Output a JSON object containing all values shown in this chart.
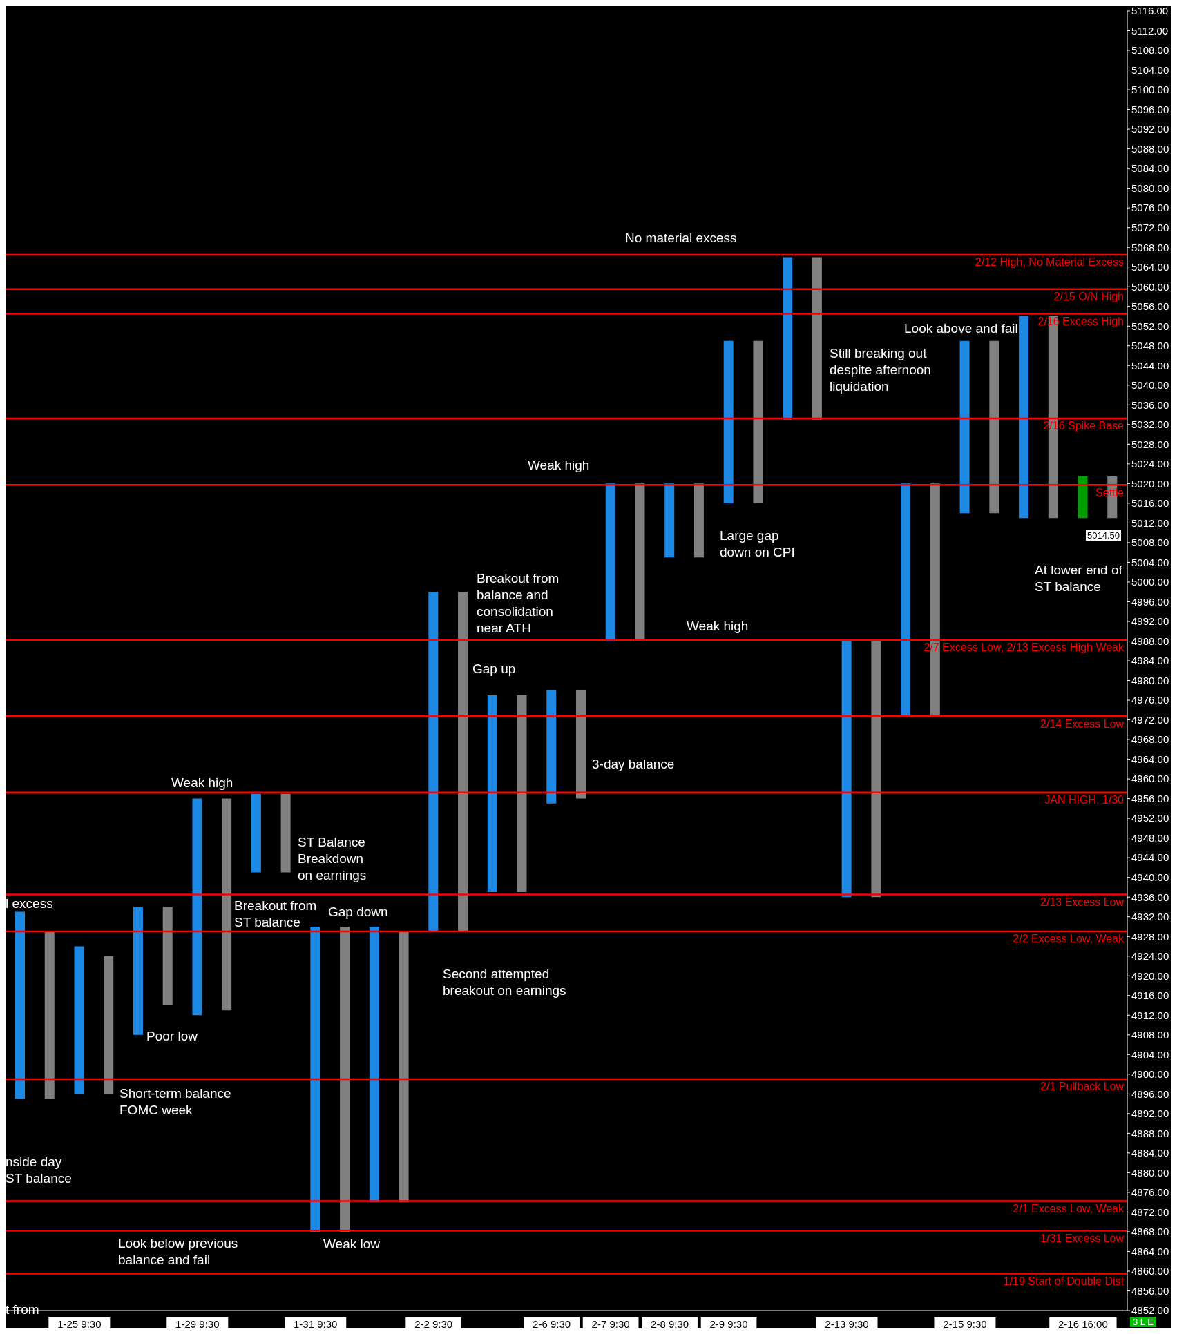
{
  "chart_data": {
    "type": "bar",
    "categories": [
      null,
      null,
      "1-25  9:30",
      null,
      null,
      null,
      "1-29  9:30",
      null,
      null,
      null,
      "1-31  9:30",
      null,
      null,
      null,
      "2-2  9:30",
      null,
      null,
      null,
      "2-6  9:30",
      null,
      "2-7  9:30",
      null,
      "2-8  9:30",
      null,
      "2-9  9:30",
      null,
      null,
      null,
      "2-13  9:30",
      null,
      null,
      null,
      "2-15  9:30",
      null,
      null,
      null,
      "2-16  16:00",
      null
    ],
    "base": [
      4895,
      4895,
      4896,
      4896,
      4908,
      4914,
      4912,
      4913,
      4941,
      4941,
      4868,
      4868,
      4874,
      4874,
      4929,
      4929,
      4937,
      4937,
      4955,
      4956,
      4988,
      4988,
      5005,
      5005,
      5016,
      5016,
      5033,
      5033,
      4936,
      4936,
      4973,
      4973,
      5014,
      5014,
      5013,
      5013,
      5013,
      5013
    ],
    "values": [
      38,
      34,
      30,
      28,
      26,
      20,
      44,
      43,
      16,
      16,
      62,
      62,
      56,
      55,
      69,
      69,
      40,
      40,
      23,
      22,
      32,
      32,
      15,
      15,
      33,
      33,
      33,
      33,
      52,
      52,
      47,
      47,
      35,
      35,
      41,
      41,
      8.5,
      8.5
    ],
    "colors": [
      "#1e88e5",
      "#808080",
      "#1e88e5",
      "#808080",
      "#1e88e5",
      "#808080",
      "#1e88e5",
      "#808080",
      "#1e88e5",
      "#808080",
      "#1e88e5",
      "#808080",
      "#1e88e5",
      "#808080",
      "#1e88e5",
      "#808080",
      "#1e88e5",
      "#808080",
      "#1e88e5",
      "#808080",
      "#1e88e5",
      "#808080",
      "#1e88e5",
      "#808080",
      "#1e88e5",
      "#808080",
      "#1e88e5",
      "#808080",
      "#1e88e5",
      "#808080",
      "#1e88e5",
      "#808080",
      "#1e88e5",
      "#808080",
      "#1e88e5",
      "#808080",
      "#00a000",
      "#808080"
    ],
    "ylim": [
      4852,
      5116
    ],
    "yticks": [
      {
        "value": 4852,
        "label": "4852.00"
      },
      {
        "value": 4856,
        "label": "4856.00"
      },
      {
        "value": 4860,
        "label": "4860.00"
      },
      {
        "value": 4864,
        "label": "4864.00"
      },
      {
        "value": 4868,
        "label": "4868.00"
      },
      {
        "value": 4872,
        "label": "4872.00"
      },
      {
        "value": 4876,
        "label": "4876.00"
      },
      {
        "value": 4880,
        "label": "4880.00"
      },
      {
        "value": 4884,
        "label": "4884.00"
      },
      {
        "value": 4888,
        "label": "4888.00"
      },
      {
        "value": 4892,
        "label": "4892.00"
      },
      {
        "value": 4896,
        "label": "4896.00"
      },
      {
        "value": 4900,
        "label": "4900.00"
      },
      {
        "value": 4904,
        "label": "4904.00"
      },
      {
        "value": 4908,
        "label": "4908.00"
      },
      {
        "value": 4912,
        "label": "4912.00"
      },
      {
        "value": 4916,
        "label": "4916.00"
      },
      {
        "value": 4920,
        "label": "4920.00"
      },
      {
        "value": 4924,
        "label": "4924.00"
      },
      {
        "value": 4928,
        "label": "4928.00"
      },
      {
        "value": 4932,
        "label": "4932.00"
      },
      {
        "value": 4936,
        "label": "4936.00"
      },
      {
        "value": 4940,
        "label": "4940.00"
      },
      {
        "value": 4944,
        "label": "4944.00"
      },
      {
        "value": 4948,
        "label": "4948.00"
      },
      {
        "value": 4952,
        "label": "4952.00"
      },
      {
        "value": 4956,
        "label": "4956.00"
      },
      {
        "value": 4960,
        "label": "4960.00"
      },
      {
        "value": 4964,
        "label": "4964.00"
      },
      {
        "value": 4968,
        "label": "4968.00"
      },
      {
        "value": 4972,
        "label": "4972.00"
      },
      {
        "value": 4976,
        "label": "4976.00"
      },
      {
        "value": 4980,
        "label": "4980.00"
      },
      {
        "value": 4984,
        "label": "4984.00"
      },
      {
        "value": 4988,
        "label": "4988.00"
      },
      {
        "value": 4992,
        "label": "4992.00"
      },
      {
        "value": 4996,
        "label": "4996.00"
      },
      {
        "value": 5000,
        "label": "5000.00"
      },
      {
        "value": 5004,
        "label": "5004.00"
      },
      {
        "value": 5008,
        "label": "5008.00"
      },
      {
        "value": 5012,
        "label": "5012.00"
      },
      {
        "value": 5016,
        "label": "5016.00"
      },
      {
        "value": 5020,
        "label": "5020.00"
      },
      {
        "value": 5024,
        "label": "5024.00"
      },
      {
        "value": 5028,
        "label": "5028.00"
      },
      {
        "value": 5032,
        "label": "5032.00"
      },
      {
        "value": 5036,
        "label": "5036.00"
      },
      {
        "value": 5040,
        "label": "5040.00"
      },
      {
        "value": 5044,
        "label": "5044.00"
      },
      {
        "value": 5048,
        "label": "5048.00"
      },
      {
        "value": 5052,
        "label": "5052.00"
      },
      {
        "value": 5056,
        "label": "5056.00"
      },
      {
        "value": 5060,
        "label": "5060.00"
      },
      {
        "value": 5064,
        "label": "5064.00"
      },
      {
        "value": 5068,
        "label": "5068.00"
      },
      {
        "value": 5072,
        "label": "5072.00"
      },
      {
        "value": 5076,
        "label": "5076.00"
      },
      {
        "value": 5080,
        "label": "5080.00"
      },
      {
        "value": 5084,
        "label": "5084.00"
      },
      {
        "value": 5088,
        "label": "5088.00"
      },
      {
        "value": 5092,
        "label": "5092.00"
      },
      {
        "value": 5096,
        "label": "5096.00"
      },
      {
        "value": 5100,
        "label": "5100.00"
      },
      {
        "value": 5104,
        "label": "5104.00"
      },
      {
        "value": 5108,
        "label": "5108.00"
      },
      {
        "value": 5112,
        "label": "5112.00"
      },
      {
        "value": 5116,
        "label": "5116.00"
      }
    ],
    "grid": false,
    "legend": false,
    "ref_lines": [
      {
        "axis": "y",
        "value": 5066.5,
        "label": "2/12 High, No Material Excess",
        "color": "#ff0000"
      },
      {
        "axis": "y",
        "value": 5059.5,
        "label": "2/15 O/N High",
        "color": "#ff0000"
      },
      {
        "axis": "y",
        "value": 5054.5,
        "label": "2/16 Excess High",
        "color": "#ff0000"
      },
      {
        "axis": "y",
        "value": 5033.25,
        "label": "2/16 Spike Base",
        "color": "#ff0000"
      },
      {
        "axis": "y",
        "value": 5019.75,
        "label": "Settle",
        "color": "#ff0000"
      },
      {
        "axis": "y",
        "value": 4988.25,
        "label": "2/7 Excess Low, 2/13 Excess High Weak",
        "color": "#ff0000"
      },
      {
        "axis": "y",
        "value": 4972.75,
        "label": "2/14 Excess Low",
        "color": "#ff0000"
      },
      {
        "axis": "y",
        "value": 4957.25,
        "label": "JAN HIGH, 1/30",
        "color": "#ff0000"
      },
      {
        "axis": "y",
        "value": 4936.5,
        "label": "2/13 Excess Low",
        "color": "#ff0000"
      },
      {
        "axis": "y",
        "value": 4929,
        "label": "2/2 Excess Low, Weak",
        "color": "#ff0000"
      },
      {
        "axis": "y",
        "value": 4899,
        "label": "2/1 Pullback Low",
        "color": "#ff0000"
      },
      {
        "axis": "y",
        "value": 4874.25,
        "label": "2/1 Excess Low, Weak",
        "color": "#ff0000"
      },
      {
        "axis": "y",
        "value": 4868.25,
        "label": "1/31 Excess Low",
        "color": "#ff0000"
      },
      {
        "axis": "y",
        "value": 4859.5,
        "label": "1/19 Start of Double Dist",
        "color": "#ff0000"
      }
    ],
    "annotations": [
      "No material excess",
      "Look above and fail",
      "Still breaking out\ndespite afternoon\nliquidation",
      "At lower end of\nST balance",
      "Weak high",
      "Large gap\ndown on CPI",
      "Breakout from\nbalance and\nconsolidation\nnear ATH",
      "Weak high",
      "Gap up",
      "3-day balance",
      "Weak high",
      "ST Balance\nBreakdown\non earnings",
      "Breakout from\nST balance",
      "Gap down",
      "l excess",
      "Poor low",
      "Short-term balance\nFOMC week",
      "Second attempted\nbreakout on earnings",
      "nside day\nST balance",
      "Look below previous\nbalance and fail",
      "Weak low",
      "t from",
      "3 L E",
      "5014.50"
    ]
  }
}
